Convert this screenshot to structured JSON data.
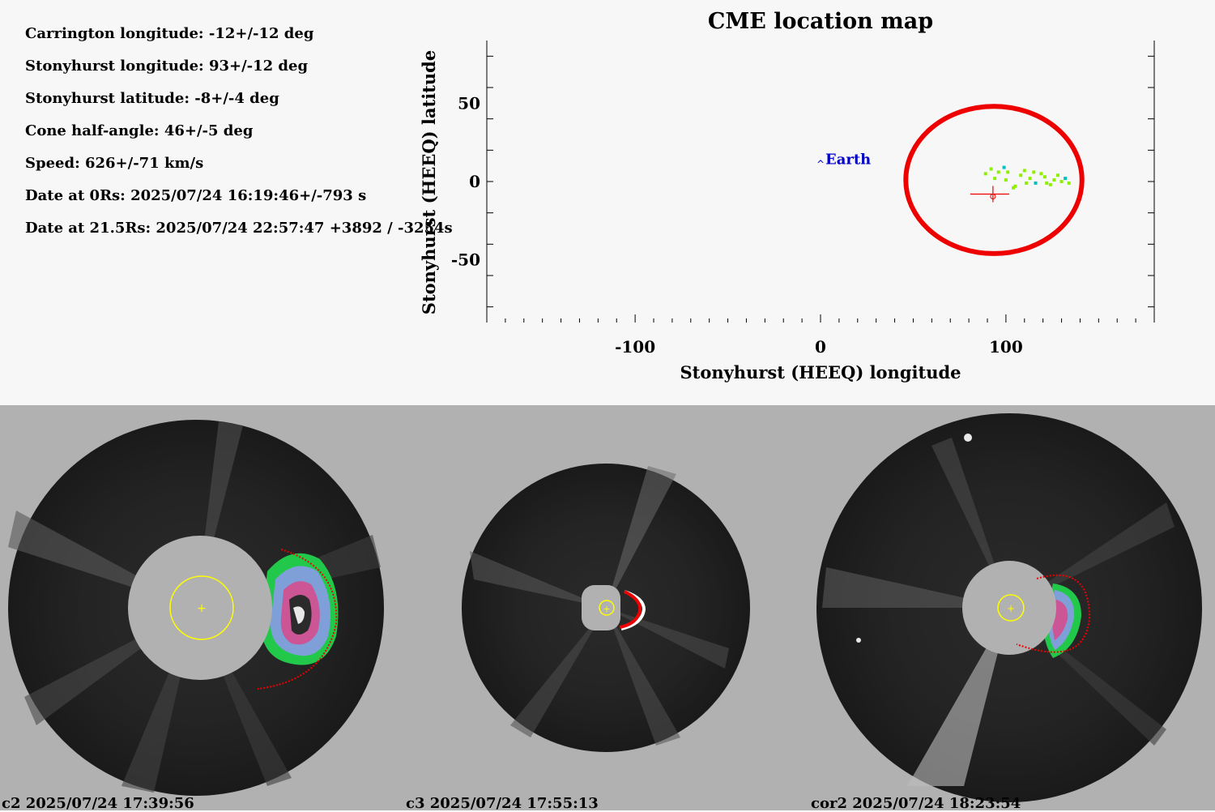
{
  "info": {
    "carrington_longitude": "Carrington longitude: -12+/-12 deg",
    "stonyhurst_longitude": "Stonyhurst longitude: 93+/-12 deg",
    "stonyhurst_latitude": "Stonyhurst latitude: -8+/-4 deg",
    "cone_half_angle": "Cone half-angle: 46+/-5 deg",
    "speed": "Speed: 626+/-71 km/s",
    "date_0rs": "Date at 0Rs: 2025/07/24 16:19:46+/-793 s",
    "date_21_5rs": "Date at 21.5Rs: 2025/07/24 22:57:47 +3892 / -3254s"
  },
  "chart_data": {
    "type": "scatter",
    "title": "CME location map",
    "xlabel": "Stonyhurst (HEEQ) longitude",
    "ylabel": "Stonyhurst (HEEQ) latitude",
    "xlim": [
      -180,
      180
    ],
    "ylim": [
      -90,
      90
    ],
    "xticks": [
      -100,
      0,
      100
    ],
    "xtick_labels": [
      "-100",
      "0",
      "100"
    ],
    "yticks": [
      50,
      0,
      -50
    ],
    "ytick_labels": [
      "50",
      "0",
      "-50"
    ],
    "earth": {
      "label": "Earth",
      "lon": 0,
      "lat": 10
    },
    "cme_center": {
      "lon": 93,
      "lat": -8
    },
    "cone_outline": {
      "lon_min": 46,
      "lon_max": 141,
      "lat_min": -46,
      "lat_max": 48,
      "color": "#ee0000"
    },
    "detections": {
      "color_primary": "#8ef000",
      "color_secondary": "#00c0c0",
      "points": [
        [
          89,
          5
        ],
        [
          92,
          8
        ],
        [
          96,
          6
        ],
        [
          99,
          9
        ],
        [
          94,
          2
        ],
        [
          100,
          1
        ],
        [
          105,
          -3
        ],
        [
          108,
          4
        ],
        [
          110,
          7
        ],
        [
          113,
          2
        ],
        [
          116,
          -1
        ],
        [
          119,
          5
        ],
        [
          121,
          3
        ],
        [
          124,
          -2
        ],
        [
          126,
          1
        ],
        [
          128,
          4
        ],
        [
          130,
          0
        ],
        [
          132,
          2
        ],
        [
          134,
          -1
        ],
        [
          104,
          -4
        ],
        [
          115,
          6
        ],
        [
          101,
          6
        ],
        [
          111,
          -1
        ],
        [
          122,
          -1
        ]
      ]
    }
  },
  "panels": [
    {
      "caption": "c2 2025/07/24 17:39:56",
      "instrument": "c2"
    },
    {
      "caption": "c3 2025/07/24 17:55:13",
      "instrument": "c3"
    },
    {
      "caption": "cor2 2025/07/24 18:23:54",
      "instrument": "cor2"
    }
  ],
  "colors": {
    "page_background": "#f7f7f7",
    "panel_background": "#b1b1b1",
    "occulter": "#b1b1b1",
    "sun_circle": "#ffff00",
    "cme_fit": "#ee0000",
    "earth_marker": "#0000c8"
  }
}
